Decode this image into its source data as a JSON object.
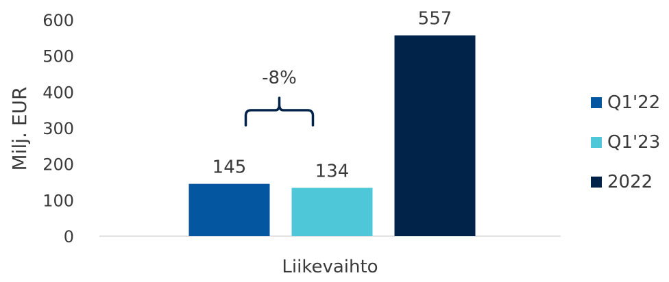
{
  "chart_data": {
    "type": "bar",
    "categories": [
      "Liikevaihto"
    ],
    "series": [
      {
        "name": "Q1'22",
        "values": [
          145
        ],
        "color": "#0556a0"
      },
      {
        "name": "Q1'23",
        "values": [
          134
        ],
        "color": "#4ec8d8"
      },
      {
        "name": "2022",
        "values": [
          557
        ],
        "color": "#01234a"
      }
    ],
    "ylabel": "Milj. EUR",
    "ylim": [
      0,
      600
    ],
    "yticks": [
      0,
      100,
      200,
      300,
      400,
      500,
      600
    ],
    "grid": false,
    "legend": "right",
    "annotation": {
      "text": "-8%",
      "between": [
        "Q1'22",
        "Q1'23"
      ]
    }
  }
}
